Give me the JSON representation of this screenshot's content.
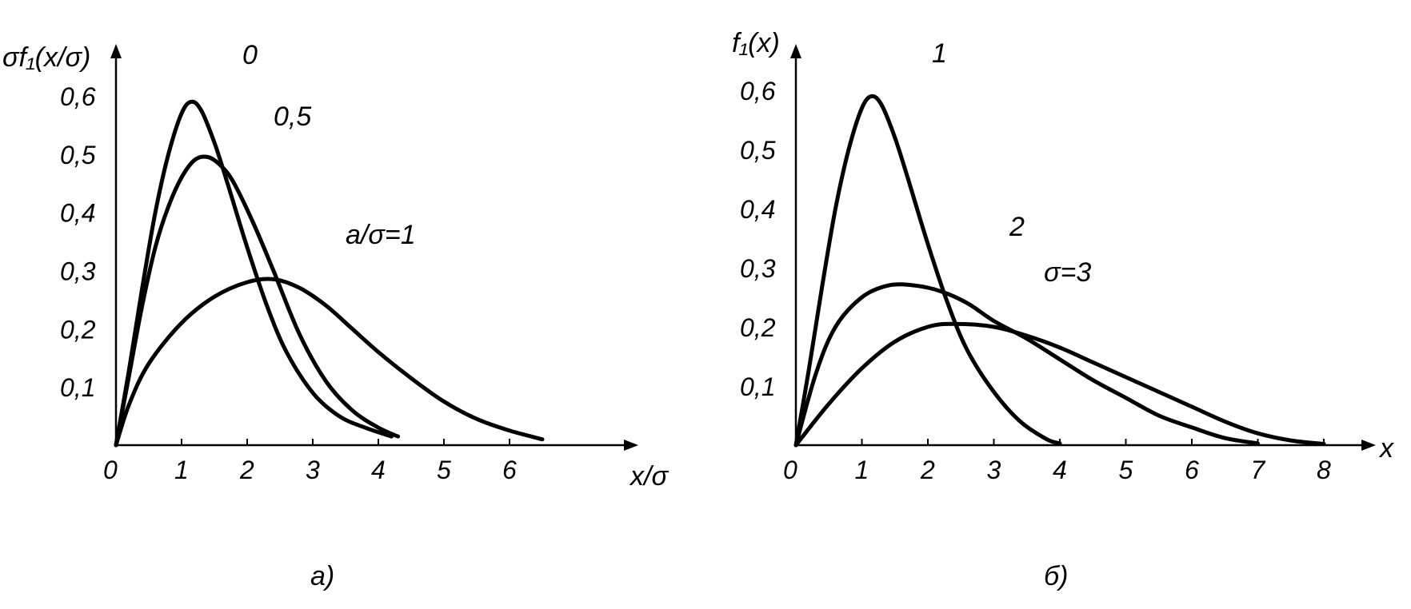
{
  "chart_data": [
    {
      "id": "a",
      "type": "line",
      "panel_label": "а)",
      "xlabel": "x/σ",
      "ylabel": "σf₁(x/σ)",
      "xticks": [
        "0",
        "1",
        "2",
        "3",
        "4",
        "5",
        "6"
      ],
      "yticks": [
        "0,1",
        "0,2",
        "0,3",
        "0,4",
        "0,5",
        "0,6"
      ],
      "xlim": [
        0,
        7.8
      ],
      "ylim": [
        0,
        0.67
      ],
      "grid": false,
      "series": [
        {
          "name": "0",
          "x": [
            0,
            0.2,
            0.4,
            0.6,
            0.8,
            1.0,
            1.15,
            1.3,
            1.5,
            1.7,
            2.0,
            2.3,
            2.6,
            3.0,
            3.4,
            3.8,
            4.2
          ],
          "y": [
            0,
            0.13,
            0.27,
            0.4,
            0.5,
            0.57,
            0.59,
            0.575,
            0.52,
            0.45,
            0.34,
            0.24,
            0.16,
            0.09,
            0.05,
            0.03,
            0.015
          ]
        },
        {
          "name": "0,5",
          "x": [
            0,
            0.2,
            0.4,
            0.6,
            0.8,
            1.0,
            1.2,
            1.4,
            1.6,
            1.8,
            2.1,
            2.4,
            2.8,
            3.2,
            3.6,
            4.0,
            4.3
          ],
          "y": [
            0,
            0.12,
            0.24,
            0.34,
            0.41,
            0.46,
            0.49,
            0.495,
            0.48,
            0.45,
            0.38,
            0.3,
            0.19,
            0.11,
            0.06,
            0.03,
            0.015
          ]
        },
        {
          "name": "a/σ=1",
          "x": [
            0,
            0.2,
            0.5,
            1.0,
            1.5,
            2.0,
            2.4,
            2.8,
            3.2,
            3.6,
            4.0,
            4.5,
            5.0,
            5.5,
            6.0,
            6.5
          ],
          "y": [
            0,
            0.07,
            0.14,
            0.21,
            0.255,
            0.28,
            0.285,
            0.27,
            0.24,
            0.2,
            0.16,
            0.115,
            0.075,
            0.045,
            0.025,
            0.01
          ]
        }
      ]
    },
    {
      "id": "b",
      "type": "line",
      "panel_label": "б)",
      "xlabel": "x",
      "ylabel": "f₁(x)",
      "xticks": [
        "0",
        "1",
        "2",
        "3",
        "4",
        "5",
        "6",
        "7",
        "8"
      ],
      "yticks": [
        "0,1",
        "0,2",
        "0,3",
        "0,4",
        "0,5",
        "0,6"
      ],
      "xlim": [
        0,
        8.8
      ],
      "ylim": [
        0,
        0.67
      ],
      "grid": false,
      "series": [
        {
          "name": "1",
          "x": [
            0,
            0.2,
            0.4,
            0.6,
            0.8,
            1.0,
            1.15,
            1.3,
            1.5,
            1.7,
            2.0,
            2.3,
            2.6,
            3.0,
            3.4,
            3.8,
            4.0
          ],
          "y": [
            0,
            0.13,
            0.27,
            0.4,
            0.5,
            0.57,
            0.59,
            0.575,
            0.52,
            0.45,
            0.34,
            0.24,
            0.16,
            0.09,
            0.04,
            0.01,
            0.003
          ]
        },
        {
          "name": "2",
          "x": [
            0,
            0.3,
            0.6,
            1.0,
            1.4,
            1.8,
            2.2,
            2.6,
            3.0,
            3.5,
            4.0,
            4.5,
            5.0,
            5.5,
            6.0,
            6.5,
            7.0
          ],
          "y": [
            0,
            0.12,
            0.2,
            0.25,
            0.27,
            0.27,
            0.26,
            0.24,
            0.21,
            0.18,
            0.145,
            0.11,
            0.08,
            0.05,
            0.03,
            0.012,
            0.003
          ]
        },
        {
          "name": "σ=3",
          "x": [
            0,
            0.5,
            1.0,
            1.5,
            2.0,
            2.4,
            3.0,
            3.5,
            4.0,
            4.5,
            5.0,
            5.5,
            6.0,
            6.5,
            7.0,
            7.5,
            8.0
          ],
          "y": [
            0,
            0.07,
            0.13,
            0.175,
            0.2,
            0.205,
            0.2,
            0.185,
            0.165,
            0.14,
            0.115,
            0.09,
            0.065,
            0.04,
            0.02,
            0.008,
            0.002
          ]
        }
      ]
    }
  ]
}
